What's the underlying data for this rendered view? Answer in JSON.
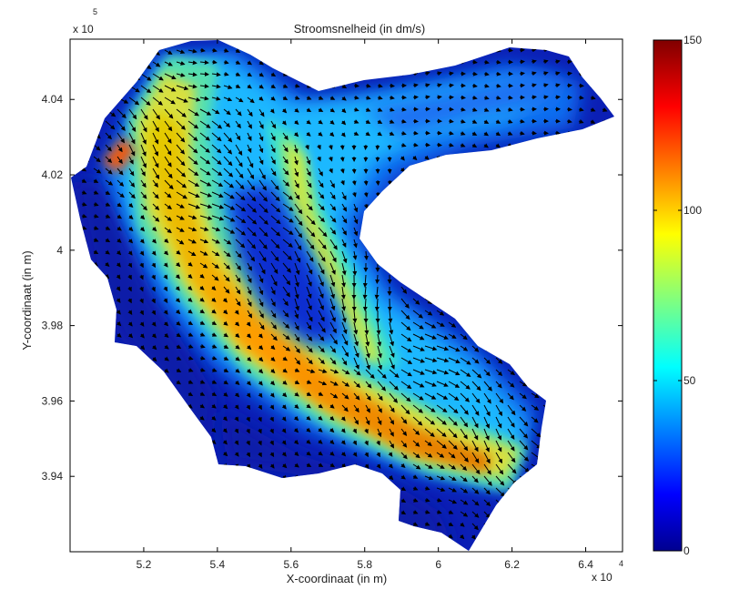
{
  "chart_data": {
    "type": "heatmap",
    "title": "Stroomsnelheid (in dm/s)",
    "xlabel": "X-coordinaat (in m)",
    "ylabel": "Y-coordinaat (in m)",
    "x_multiplier": "x 10",
    "x_multiplier_exp": "4",
    "y_multiplier": "x 10",
    "y_multiplier_exp": "5",
    "xlim": [
      5.0,
      6.5
    ],
    "ylim": [
      3.92,
      4.056
    ],
    "x_ticks": [
      "5.2",
      "5.4",
      "5.6",
      "5.8",
      "6",
      "6.2",
      "6.4"
    ],
    "x_tick_values": [
      5.2,
      5.4,
      5.6,
      5.8,
      6.0,
      6.2,
      6.4
    ],
    "y_ticks": [
      "3.94",
      "3.96",
      "3.98",
      "4",
      "4.02",
      "4.04"
    ],
    "y_tick_values": [
      3.94,
      3.96,
      3.98,
      4.0,
      4.02,
      4.04
    ],
    "colorbar": {
      "min": 0,
      "max": 150,
      "ticks": [
        "0",
        "50",
        "100",
        "150"
      ],
      "tick_values": [
        0,
        50,
        100,
        150
      ],
      "colormap": "jet"
    },
    "overlay": "velocity vectors (quiver)",
    "grid": false
  }
}
